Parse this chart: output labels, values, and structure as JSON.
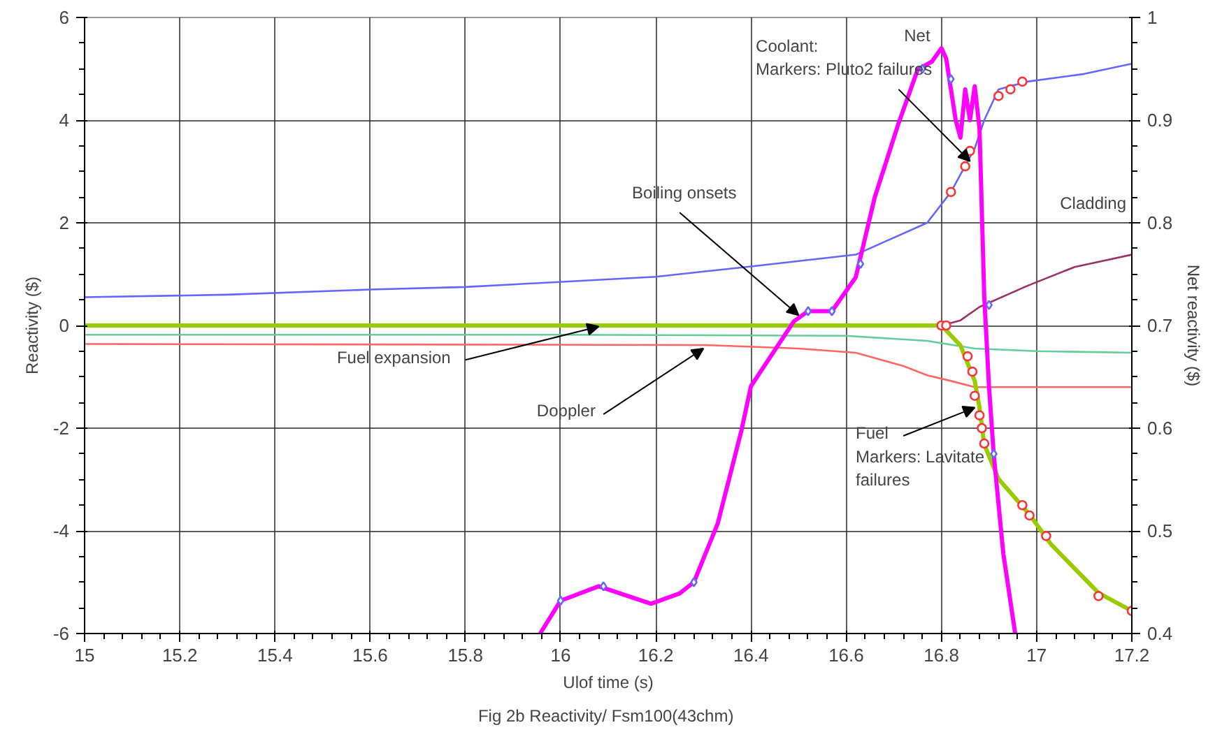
{
  "chart_data": {
    "type": "line",
    "xlabel": "Ulof time (s)",
    "ylabel": "Reactivity ($)",
    "y2label": "Net reactivity ($)",
    "xlim": [
      15,
      17.2
    ],
    "xticks": [
      15,
      15.2,
      15.4,
      15.6,
      15.8,
      16,
      16.2,
      16.4,
      16.6,
      16.8,
      17,
      17.2
    ],
    "ylim": [
      -6,
      6
    ],
    "yticks": [
      -6,
      -4,
      -2,
      0,
      2,
      4,
      6
    ],
    "y2lim": [
      0.4,
      1
    ],
    "y2ticks": [
      0.4,
      0.5,
      0.6,
      0.7,
      0.8,
      0.9,
      1
    ],
    "grid": true,
    "marker": "none",
    "line_style": "solid",
    "series": [
      {
        "color": "#6666ff",
        "x": [
          15,
          15.3,
          15.6,
          15.8,
          15.9,
          16.2,
          16.4,
          16.62,
          16.77,
          16.82,
          16.87,
          16.89,
          16.92,
          16.98,
          17.1,
          17.2
        ],
        "values": [
          0.55,
          0.6,
          0.7,
          0.75,
          0.8,
          0.95,
          1.15,
          1.38,
          2.0,
          2.6,
          3.45,
          4.0,
          4.6,
          4.75,
          4.9,
          5.1
        ]
      },
      {
        "color": "#66cc99",
        "x": [
          15,
          16.0,
          16.6,
          16.77,
          16.87,
          17.0,
          17.2
        ],
        "values": [
          -0.18,
          -0.18,
          -0.2,
          -0.3,
          -0.45,
          -0.5,
          -0.53
        ]
      },
      {
        "color": "#ff6666",
        "x": [
          15,
          16.3,
          16.5,
          16.62,
          16.72,
          16.77,
          16.82,
          16.87,
          17.2
        ],
        "values": [
          -0.36,
          -0.38,
          -0.45,
          -0.53,
          -0.79,
          -0.97,
          -1.08,
          -1.2,
          -1.2
        ]
      },
      {
        "name": "Cladding",
        "color": "#993366",
        "x": [
          16.8,
          16.84,
          16.88,
          16.98,
          17.08,
          17.2
        ],
        "values": [
          0,
          0.1,
          0.36,
          0.77,
          1.14,
          1.38
        ]
      },
      {
        "color": "#99cc00",
        "x": [
          15,
          16.8,
          16.84,
          16.87,
          16.88,
          16.89,
          16.92,
          16.985,
          17.03,
          17.13,
          17.2
        ],
        "values": [
          0,
          0,
          -0.39,
          -1.08,
          -1.6,
          -2.32,
          -2.99,
          -3.68,
          -4.26,
          -5.21,
          -5.56
        ]
      },
      {
        "name": "Net",
        "color": "#ff00ff",
        "axis": "y2",
        "x": [
          15.957,
          16.0,
          16.08,
          16.19,
          16.25,
          16.28,
          16.33,
          16.38,
          16.4,
          16.49,
          16.52,
          16.57,
          16.62,
          16.66,
          16.71,
          16.75,
          16.78,
          16.8,
          16.81,
          16.83,
          16.84,
          16.85,
          16.86,
          16.87,
          16.88,
          16.89,
          16.9,
          16.91,
          16.93,
          16.955
        ],
        "values": [
          0.4,
          0.432,
          0.446,
          0.429,
          0.439,
          0.45,
          0.507,
          0.598,
          0.641,
          0.704,
          0.714,
          0.714,
          0.747,
          0.825,
          0.897,
          0.949,
          0.957,
          0.97,
          0.96,
          0.9,
          0.883,
          0.93,
          0.9,
          0.933,
          0.892,
          0.728,
          0.64,
          0.574,
          0.478,
          0.4
        ]
      },
      {
        "type": "scatter",
        "marker": "circle",
        "color": "#ff3333",
        "x": [
          16.82,
          16.85,
          16.86,
          16.92,
          16.945,
          16.97
        ],
        "values": [
          2.6,
          3.1,
          3.4,
          4.47,
          4.6,
          4.75
        ]
      },
      {
        "type": "scatter",
        "marker": "circle",
        "color": "#ff3333",
        "x": [
          16.8,
          16.81,
          16.855,
          16.865,
          16.87,
          16.88,
          16.885,
          16.89,
          16.97,
          16.985,
          17.02,
          17.13,
          17.2
        ],
        "values": [
          0.0,
          0.0,
          -0.6,
          -0.9,
          -1.37,
          -1.75,
          -2.0,
          -2.3,
          -3.5,
          -3.7,
          -4.1,
          -5.27,
          -5.56
        ]
      },
      {
        "type": "scatter",
        "marker": "diamond",
        "color": "#6666ff",
        "axis": "y2",
        "x": [
          16.0,
          16.09,
          16.28,
          16.52,
          16.57,
          16.63,
          16.76,
          16.82,
          16.9,
          16.91
        ],
        "values": [
          0.432,
          0.446,
          0.45,
          0.714,
          0.714,
          0.76,
          0.95,
          0.94,
          0.72,
          0.575
        ]
      }
    ],
    "annotations": [
      {
        "text": "Coolant:\nMarkers: Pluto2 failures",
        "x": 16.86,
        "y": 3.2
      },
      {
        "text": "Boiling onsets",
        "x": 16.5,
        "y": 0.2
      },
      {
        "text": "Fuel expansion",
        "x": 16.08,
        "y": -0.02
      },
      {
        "text": "Doppler",
        "x": 16.3,
        "y": -0.45
      },
      {
        "text": "Fuel\nMarkers: Lavitate\nfailures",
        "x": 16.87,
        "y": -1.6
      },
      "Fig 2b  Reactivity/ Fsm100(43chm)"
    ]
  }
}
